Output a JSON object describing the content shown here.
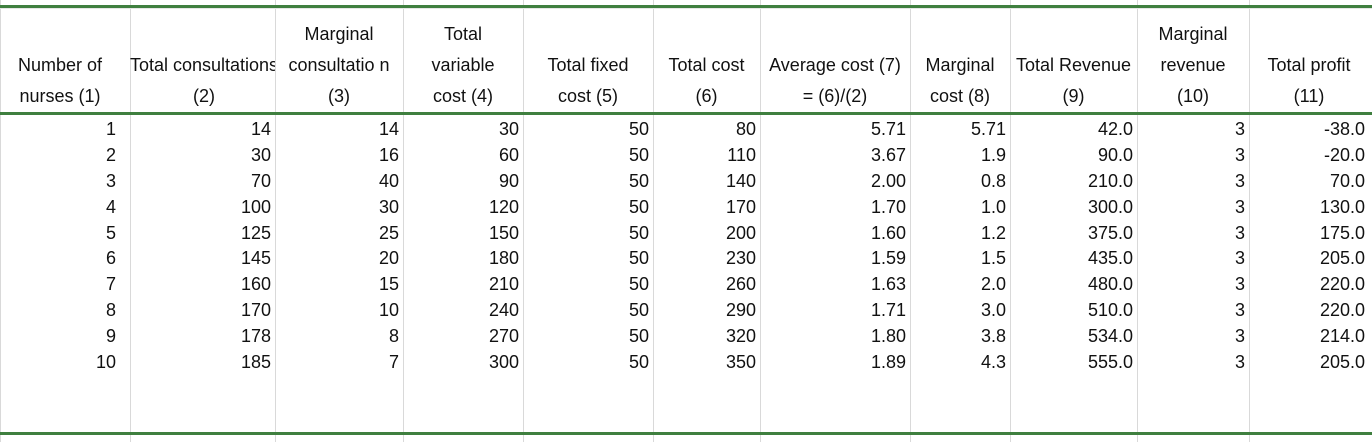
{
  "table": {
    "headers": [
      "Number of nurses (1)",
      "Total consultations (2)",
      "Marginal consultatio n (3)",
      "Total variable cost (4)",
      "Total fixed cost (5)",
      "Total cost (6)",
      "Average cost (7) = (6)/(2)",
      "Marginal cost (8)",
      "Total Revenue (9)",
      "Marginal revenue (10)",
      "Total profit (11)"
    ],
    "rows": [
      [
        "1",
        "14",
        "14",
        "30",
        "50",
        "80",
        "5.71",
        "5.71",
        "42.0",
        "3",
        "-38.0"
      ],
      [
        "2",
        "30",
        "16",
        "60",
        "50",
        "110",
        "3.67",
        "1.9",
        "90.0",
        "3",
        "-20.0"
      ],
      [
        "3",
        "70",
        "40",
        "90",
        "50",
        "140",
        "2.00",
        "0.8",
        "210.0",
        "3",
        "70.0"
      ],
      [
        "4",
        "100",
        "30",
        "120",
        "50",
        "170",
        "1.70",
        "1.0",
        "300.0",
        "3",
        "130.0"
      ],
      [
        "5",
        "125",
        "25",
        "150",
        "50",
        "200",
        "1.60",
        "1.2",
        "375.0",
        "3",
        "175.0"
      ],
      [
        "6",
        "145",
        "20",
        "180",
        "50",
        "230",
        "1.59",
        "1.5",
        "435.0",
        "3",
        "205.0"
      ],
      [
        "7",
        "160",
        "15",
        "210",
        "50",
        "260",
        "1.63",
        "2.0",
        "480.0",
        "3",
        "220.0"
      ],
      [
        "8",
        "170",
        "10",
        "240",
        "50",
        "290",
        "1.71",
        "3.0",
        "510.0",
        "3",
        "220.0"
      ],
      [
        "9",
        "178",
        "8",
        "270",
        "50",
        "320",
        "1.80",
        "3.8",
        "534.0",
        "3",
        "214.0"
      ],
      [
        "10",
        "185",
        "7",
        "300",
        "50",
        "350",
        "1.89",
        "4.3",
        "555.0",
        "3",
        "205.0"
      ]
    ]
  },
  "colors": {
    "rule": "#3f7f3f",
    "gridline": "#d9d9d9",
    "text": "#111111"
  }
}
